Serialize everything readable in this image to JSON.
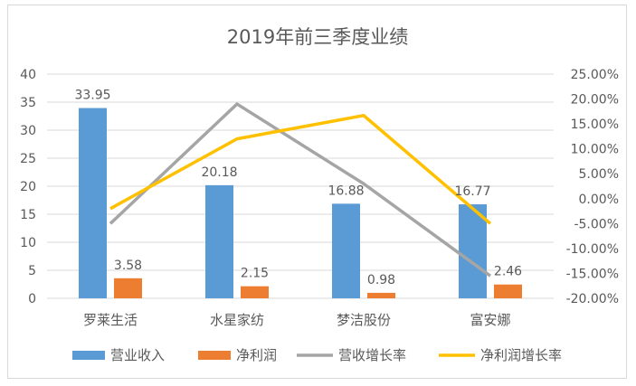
{
  "chart_data": {
    "type": "bar",
    "title": "2019年前三季度业绩",
    "categories": [
      "罗莱生活",
      "水星家纺",
      "梦洁股份",
      "富安娜"
    ],
    "series": [
      {
        "name": "营业收入",
        "type": "bar",
        "axis": "left",
        "color": "#5b9bd5",
        "values": [
          33.95,
          20.18,
          16.88,
          16.77
        ]
      },
      {
        "name": "净利润",
        "type": "bar",
        "axis": "left",
        "color": "#ed7d31",
        "values": [
          3.58,
          2.15,
          0.98,
          2.46
        ]
      },
      {
        "name": "营收增长率",
        "type": "line",
        "axis": "right",
        "color": "#a5a5a5",
        "values": [
          -0.05,
          0.19,
          0.03,
          -0.155
        ]
      },
      {
        "name": "净利润增长率",
        "type": "line",
        "axis": "right",
        "color": "#ffc000",
        "values": [
          -0.02,
          0.12,
          0.167,
          -0.05
        ]
      }
    ],
    "left_axis": {
      "min": 0,
      "max": 40,
      "ticks": [
        "0",
        "5",
        "10",
        "15",
        "20",
        "25",
        "30",
        "35",
        "40"
      ]
    },
    "right_axis": {
      "min": -0.2,
      "max": 0.25,
      "ticks": [
        "-20.00%",
        "-15.00%",
        "-10.00%",
        "-5.00%",
        "0.00%",
        "5.00%",
        "10.00%",
        "15.00%",
        "20.00%",
        "25.00%"
      ]
    },
    "data_labels": {
      "营业收入": [
        "33.95",
        "20.18",
        "16.88",
        "16.77"
      ],
      "净利润": [
        "3.58",
        "2.15",
        "0.98",
        "2.46"
      ]
    },
    "legend_position": "bottom",
    "grid": true
  }
}
